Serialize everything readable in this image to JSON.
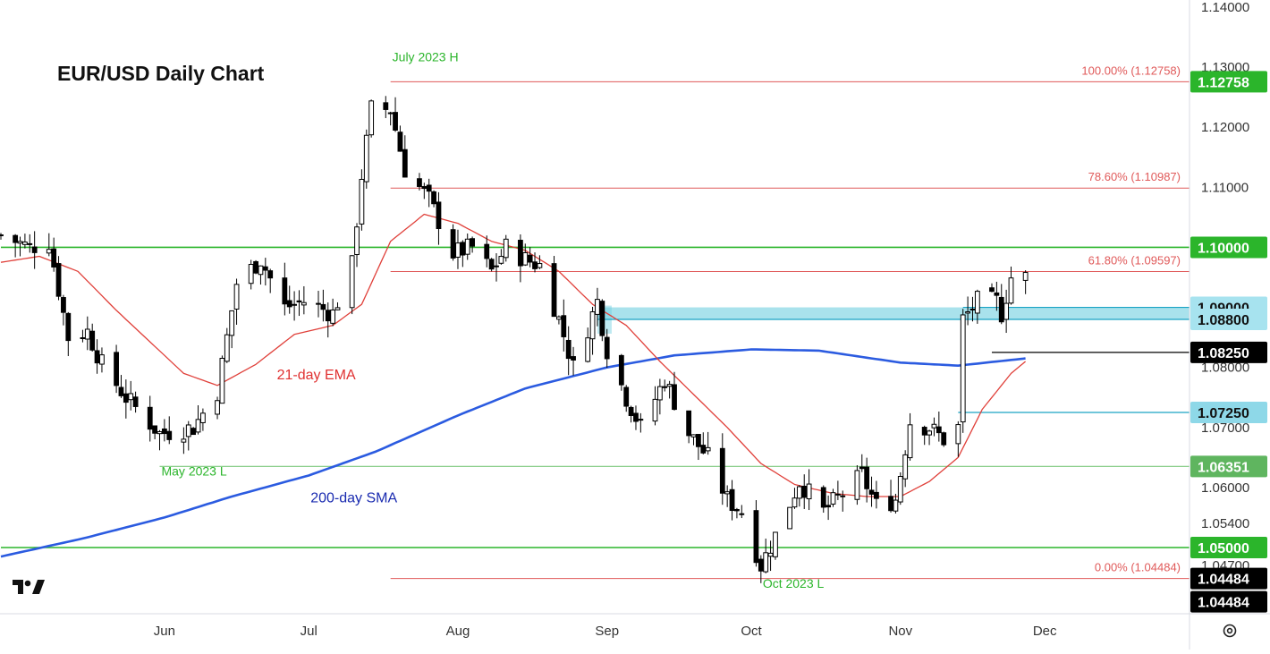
{
  "chart_data": {
    "type": "candlestick",
    "title": "EUR/USD Daily Chart",
    "xlabel": "",
    "ylabel": "",
    "ylim": [
      1.0425,
      1.14
    ],
    "y_ticks": [
      "1.14000",
      "1.13000",
      "1.12000",
      "1.11000",
      "1.10000",
      "1.09000",
      "1.08000",
      "1.07000",
      "1.06000",
      "1.05400",
      "1.04700"
    ],
    "x_ticks": [
      {
        "label": "Jun",
        "date": "2023-06-01"
      },
      {
        "label": "Jul",
        "date": "2023-07-01"
      },
      {
        "label": "Aug",
        "date": "2023-08-01"
      },
      {
        "label": "Sep",
        "date": "2023-09-01"
      },
      {
        "label": "Oct",
        "date": "2023-10-01"
      },
      {
        "label": "Nov",
        "date": "2023-11-01"
      },
      {
        "label": "Dec",
        "date": "2023-12-01"
      }
    ],
    "x_range": [
      "2023-04-28",
      "2023-12-27"
    ],
    "grid": false,
    "close_path": [
      [
        "2023-04-28",
        1.102
      ],
      [
        "2023-05-04",
        1.1
      ],
      [
        "2023-05-08",
        1.101
      ],
      [
        "2023-05-12",
        1.085
      ],
      [
        "2023-05-16",
        1.086
      ],
      [
        "2023-05-19",
        1.0805
      ],
      [
        "2023-05-24",
        1.075
      ],
      [
        "2023-05-31",
        1.069
      ],
      [
        "2023-06-07",
        1.07
      ],
      [
        "2023-06-12",
        1.076
      ],
      [
        "2023-06-16",
        1.094
      ],
      [
        "2023-06-21",
        1.098
      ],
      [
        "2023-06-26",
        1.09
      ],
      [
        "2023-06-30",
        1.091
      ],
      [
        "2023-07-06",
        1.089
      ],
      [
        "2023-07-10",
        1.097
      ],
      [
        "2023-07-12",
        1.112
      ],
      [
        "2023-07-14",
        1.123
      ],
      [
        "2023-07-18",
        1.123
      ],
      [
        "2023-07-21",
        1.113
      ],
      [
        "2023-07-26",
        1.108
      ],
      [
        "2023-07-31",
        1.099
      ],
      [
        "2023-08-04",
        1.1
      ],
      [
        "2023-08-08",
        1.096
      ],
      [
        "2023-08-11",
        1.1
      ],
      [
        "2023-08-15",
        1.098
      ],
      [
        "2023-08-18",
        1.097
      ],
      [
        "2023-08-22",
        1.088
      ],
      [
        "2023-08-25",
        1.08
      ],
      [
        "2023-08-30",
        1.091
      ],
      [
        "2023-09-01",
        1.083
      ],
      [
        "2023-09-05",
        1.075
      ],
      [
        "2023-09-08",
        1.07
      ],
      [
        "2023-09-13",
        1.078
      ],
      [
        "2023-09-18",
        1.069
      ],
      [
        "2023-09-22",
        1.065
      ],
      [
        "2023-09-26",
        1.058
      ],
      [
        "2023-09-29",
        1.056
      ],
      [
        "2023-10-03",
        1.047
      ],
      [
        "2023-10-06",
        1.052
      ],
      [
        "2023-10-11",
        1.061
      ],
      [
        "2023-10-16",
        1.056
      ],
      [
        "2023-10-20",
        1.059
      ],
      [
        "2023-10-24",
        1.062
      ],
      [
        "2023-10-27",
        1.057
      ],
      [
        "2023-10-31",
        1.058
      ],
      [
        "2023-11-03",
        1.071
      ],
      [
        "2023-11-07",
        1.07
      ],
      [
        "2023-11-10",
        1.068
      ],
      [
        "2023-11-13",
        1.07
      ],
      [
        "2023-11-14",
        1.088
      ],
      [
        "2023-11-17",
        1.091
      ],
      [
        "2023-11-21",
        1.091
      ],
      [
        "2023-11-22",
        1.089
      ],
      [
        "2023-11-24",
        1.095
      ],
      [
        "2023-11-27",
        1.095
      ]
    ],
    "ema21": [
      [
        "2023-04-28",
        1.0975
      ],
      [
        "2023-05-06",
        1.0985
      ],
      [
        "2023-05-14",
        1.096
      ],
      [
        "2023-05-22",
        1.0895
      ],
      [
        "2023-05-30",
        1.0835
      ],
      [
        "2023-06-05",
        1.079
      ],
      [
        "2023-06-12",
        1.077
      ],
      [
        "2023-06-20",
        1.0805
      ],
      [
        "2023-06-28",
        1.0855
      ],
      [
        "2023-07-06",
        1.087
      ],
      [
        "2023-07-12",
        1.0905
      ],
      [
        "2023-07-18",
        1.101
      ],
      [
        "2023-07-25",
        1.1055
      ],
      [
        "2023-08-01",
        1.104
      ],
      [
        "2023-08-08",
        1.101
      ],
      [
        "2023-08-15",
        1.0995
      ],
      [
        "2023-08-22",
        1.096
      ],
      [
        "2023-08-29",
        1.0905
      ],
      [
        "2023-09-05",
        1.087
      ],
      [
        "2023-09-12",
        1.081
      ],
      [
        "2023-09-19",
        1.0755
      ],
      [
        "2023-09-26",
        1.07
      ],
      [
        "2023-10-03",
        1.064
      ],
      [
        "2023-10-10",
        1.0605
      ],
      [
        "2023-10-18",
        1.059
      ],
      [
        "2023-10-25",
        1.0585
      ],
      [
        "2023-11-01",
        1.0585
      ],
      [
        "2023-11-07",
        1.061
      ],
      [
        "2023-11-13",
        1.065
      ],
      [
        "2023-11-18",
        1.073
      ],
      [
        "2023-11-24",
        1.079
      ],
      [
        "2023-11-27",
        1.081
      ]
    ],
    "sma200": [
      [
        "2023-04-28",
        1.0485
      ],
      [
        "2023-05-15",
        1.0515
      ],
      [
        "2023-06-01",
        1.055
      ],
      [
        "2023-06-15",
        1.0585
      ],
      [
        "2023-07-01",
        1.062
      ],
      [
        "2023-07-15",
        1.066
      ],
      [
        "2023-08-01",
        1.072
      ],
      [
        "2023-08-15",
        1.0765
      ],
      [
        "2023-09-01",
        1.08
      ],
      [
        "2023-09-15",
        1.082
      ],
      [
        "2023-10-01",
        1.083
      ],
      [
        "2023-10-15",
        1.0828
      ],
      [
        "2023-11-01",
        1.0808
      ],
      [
        "2023-11-13",
        1.0803
      ],
      [
        "2023-11-27",
        1.0815
      ]
    ],
    "zone": {
      "from": "2023-08-30",
      "to": "2023-12-27",
      "low": 1.088,
      "high": 1.09,
      "color": "#6fcfe0"
    },
    "fib_levels": [
      {
        "label": "100.00% (1.12758)",
        "value": 1.12758,
        "from": "2023-07-18"
      },
      {
        "label": "78.60% (1.10987)",
        "value": 1.10987,
        "from": "2023-07-18"
      },
      {
        "label": "61.80% (1.09597)",
        "value": 1.09597,
        "from": "2023-07-18"
      },
      {
        "label": "0.00% (1.04484)",
        "value": 1.04484,
        "from": "2023-07-18"
      }
    ],
    "horizontal_lines": [
      {
        "value": 1.1,
        "color": "#2bb52b",
        "from": "2023-04-28"
      },
      {
        "value": 1.05,
        "color": "#2bb52b",
        "from": "2023-04-28"
      },
      {
        "value": 1.06351,
        "color": "#7cc77c",
        "from": "2023-05-31"
      },
      {
        "value": 1.0725,
        "color": "#1aa3c4",
        "from": "2023-11-13"
      },
      {
        "value": 1.0825,
        "color": "#000000",
        "from": "2023-11-20"
      },
      {
        "value": 1.09,
        "color": "#1aa3c4",
        "from": "2023-11-14"
      },
      {
        "value": 1.088,
        "color": "#1aa3c4",
        "from": "2023-08-30"
      }
    ],
    "price_labels": [
      {
        "text": "1.12758",
        "value": 1.12758,
        "bg": "#2bb52b",
        "fg": "#ffffff"
      },
      {
        "text": "1.10000",
        "value": 1.1,
        "bg": "#2bb52b",
        "fg": "#ffffff"
      },
      {
        "text": "1.09000",
        "value": 1.09,
        "bg": "#a7e3ef",
        "fg": "#111111"
      },
      {
        "text": "1.08800",
        "value": 1.088,
        "bg": "#a7e3ef",
        "fg": "#111111"
      },
      {
        "text": "1.08250",
        "value": 1.0825,
        "bg": "#000000",
        "fg": "#ffffff"
      },
      {
        "text": "1.07250",
        "value": 1.0725,
        "bg": "#8ed8e8",
        "fg": "#111111"
      },
      {
        "text": "1.06351",
        "value": 1.06351,
        "bg": "#5fb55f",
        "fg": "#ffffff"
      },
      {
        "text": "1.05000",
        "value": 1.05,
        "bg": "#2bb52b",
        "fg": "#ffffff"
      },
      {
        "text": "1.04484",
        "value": 1.04484,
        "bg": "#000000",
        "fg": "#ffffff"
      },
      {
        "text": "1.04484",
        "value": 1.04484,
        "bg": "#000000",
        "fg": "#ffffff",
        "below": true
      }
    ],
    "annotations": [
      {
        "text": "July 2023 H",
        "date": "2023-07-18",
        "value": 1.131,
        "color": "#2bb52b"
      },
      {
        "text": "May 2023 L",
        "date": "2023-05-31",
        "value": 1.062,
        "color": "#2bb52b"
      },
      {
        "text": "Oct 2023 L",
        "date": "2023-10-03",
        "value": 1.0433,
        "color": "#2bb52b"
      },
      {
        "text": "21-day EMA",
        "date": "2023-06-24",
        "value": 1.078,
        "color": "#e03131"
      },
      {
        "text": "200-day SMA",
        "date": "2023-07-01",
        "value": 1.0575,
        "color": "#1a2bb0"
      }
    ],
    "colors": {
      "ema": "#e0403a",
      "sma": "#2b5be0",
      "candle": "#000000",
      "fib": "#e05a5a"
    }
  }
}
